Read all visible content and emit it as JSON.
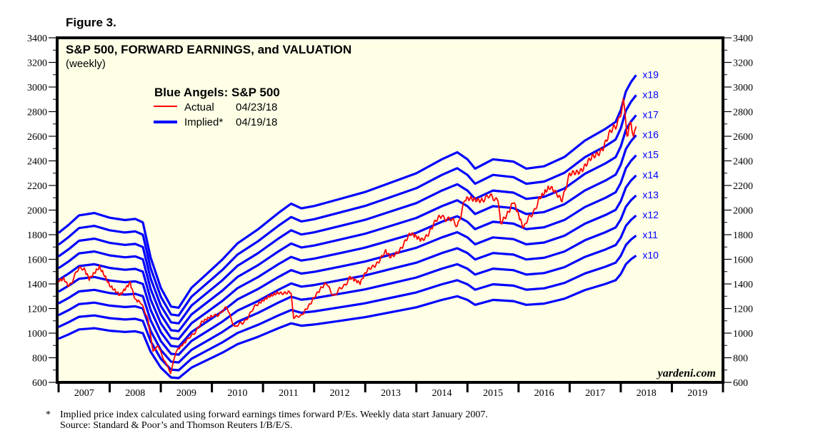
{
  "figure_label": "Figure 3.",
  "footnote": {
    "marker": "*",
    "line1": "Implied price index calculated using forward earnings times forward P/Es. Weekly data start January 2007.",
    "line2": "Source: Standard & Poor’s and Thomson Reuters I/B/E/S."
  },
  "chart_data": {
    "type": "line",
    "title": "S&P 500, FORWARD EARNINGS, and VALUATION",
    "subtitle": "(weekly)",
    "watermark": "yardeni.com",
    "legend": {
      "title": "Blue Angels: S&P 500",
      "placement": "top-left",
      "entries": [
        {
          "label": "Actual",
          "date": "04/23/18",
          "color": "#ff0000"
        },
        {
          "label": "Implied*",
          "date": "04/19/18",
          "color": "#0000ff"
        }
      ]
    },
    "xlabel": "",
    "ylabel": "",
    "xlim": [
      2007,
      2020
    ],
    "ylim": [
      600,
      3400
    ],
    "x_ticks": [
      "2007",
      "2008",
      "2009",
      "2010",
      "2011",
      "2012",
      "2013",
      "2014",
      "2015",
      "2016",
      "2017",
      "2018",
      "2019"
    ],
    "y_ticks": [
      600,
      800,
      1000,
      1200,
      1400,
      1600,
      1800,
      2000,
      2200,
      2400,
      2600,
      2800,
      3000,
      3200,
      3400
    ],
    "background": "#ffffe6",
    "implied_multiples": [
      10,
      11,
      12,
      13,
      14,
      15,
      16,
      17,
      18,
      19
    ],
    "implied_labels": [
      "x10",
      "x11",
      "x12",
      "x13",
      "x14",
      "x15",
      "x16",
      "x17",
      "x18",
      "x19"
    ],
    "forward_earnings": {
      "x": [
        2007.0,
        2007.2,
        2007.4,
        2007.7,
        2008.0,
        2008.3,
        2008.5,
        2008.65,
        2008.8,
        2009.0,
        2009.2,
        2009.35,
        2009.6,
        2009.9,
        2010.2,
        2010.5,
        2010.9,
        2011.3,
        2011.55,
        2011.75,
        2012.0,
        2012.5,
        2013.0,
        2013.5,
        2014.0,
        2014.5,
        2014.8,
        2015.0,
        2015.15,
        2015.5,
        2015.9,
        2016.15,
        2016.5,
        2016.9,
        2017.3,
        2017.7,
        2017.9,
        2018.0,
        2018.1,
        2018.2,
        2018.3
      ],
      "values": [
        95.5,
        99,
        103,
        104,
        102,
        101,
        101.5,
        100,
        85,
        72,
        64,
        63.5,
        72,
        78,
        84,
        91,
        97,
        104,
        108,
        106,
        107,
        110,
        113,
        117,
        121,
        127,
        130,
        127,
        123,
        127,
        126,
        123,
        124,
        128,
        135,
        140,
        143,
        148,
        156,
        160,
        163
      ]
    },
    "actual_sp500": {
      "x": [
        2007.0,
        2007.1,
        2007.2,
        2007.35,
        2007.5,
        2007.6,
        2007.8,
        2007.9,
        2008.0,
        2008.2,
        2008.4,
        2008.5,
        2008.6,
        2008.75,
        2008.85,
        2008.95,
        2009.1,
        2009.19,
        2009.3,
        2009.5,
        2009.8,
        2010.0,
        2010.3,
        2010.45,
        2010.6,
        2010.9,
        2011.1,
        2011.3,
        2011.55,
        2011.6,
        2011.75,
        2012.0,
        2012.25,
        2012.4,
        2012.7,
        2012.9,
        2013.0,
        2013.4,
        2013.5,
        2013.9,
        2014.1,
        2014.5,
        2014.8,
        2014.95,
        2015.3,
        2015.6,
        2015.65,
        2015.9,
        2016.1,
        2016.4,
        2016.6,
        2016.85,
        2017.0,
        2017.5,
        2017.9,
        2018.05,
        2018.12,
        2018.2,
        2018.25,
        2018.3
      ],
      "values": [
        1420,
        1440,
        1380,
        1500,
        1530,
        1450,
        1550,
        1480,
        1400,
        1320,
        1420,
        1280,
        1260,
        1100,
        850,
        900,
        750,
        680,
        850,
        930,
        1080,
        1130,
        1200,
        1050,
        1080,
        1240,
        1300,
        1340,
        1320,
        1140,
        1130,
        1300,
        1400,
        1300,
        1450,
        1400,
        1480,
        1650,
        1600,
        1800,
        1750,
        1960,
        1880,
        2070,
        2100,
        2100,
        1880,
        2080,
        1850,
        2080,
        2170,
        2100,
        2270,
        2430,
        2680,
        2870,
        2600,
        2750,
        2600,
        2680
      ]
    }
  }
}
